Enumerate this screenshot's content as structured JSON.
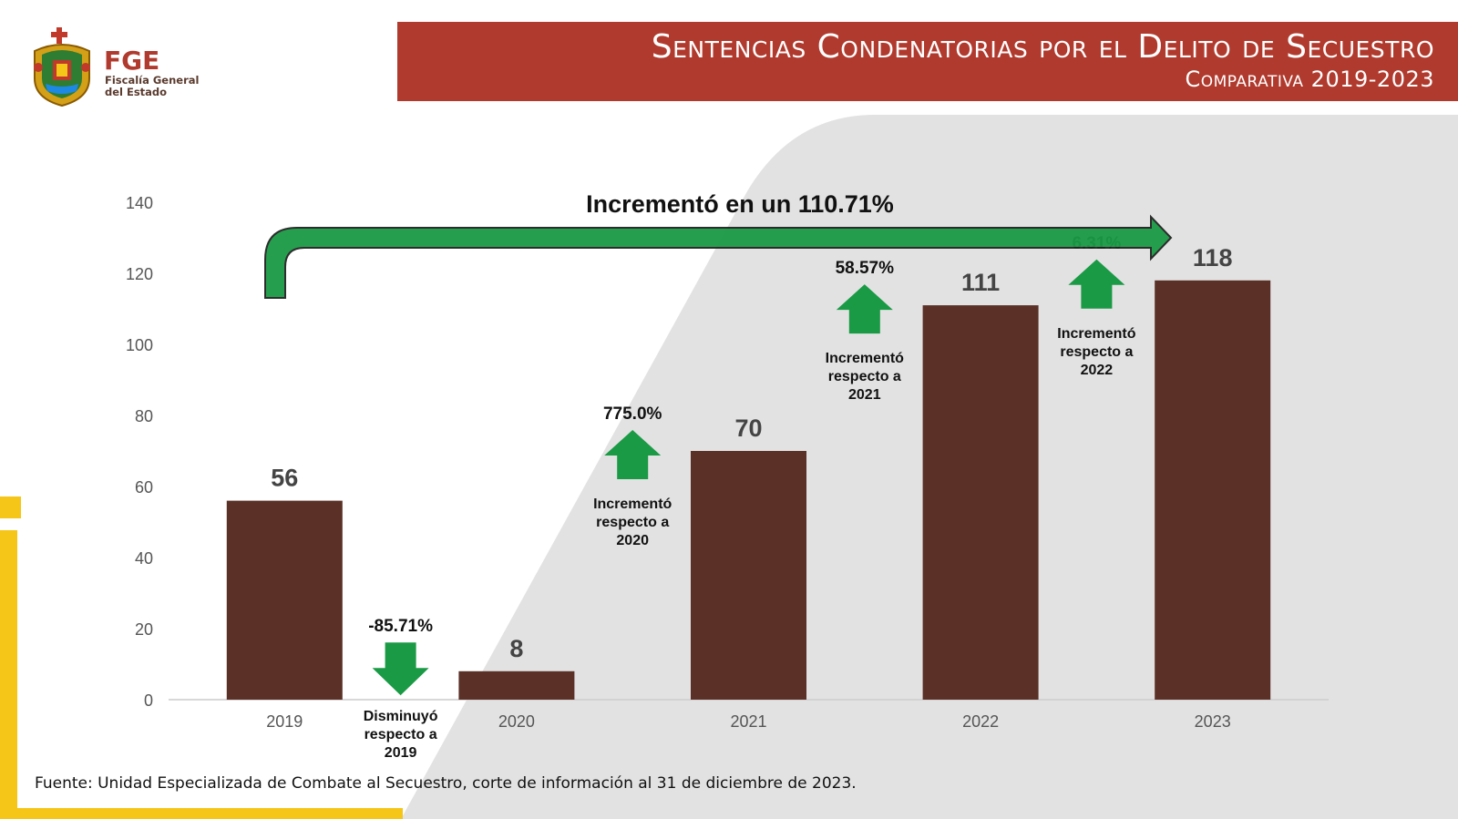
{
  "header": {
    "org_abbr": "FGE",
    "org_name_line1": "Fiscalía General",
    "org_name_line2": "del Estado",
    "title": "Sentencias Condenatorias por el Delito de Secuestro",
    "subtitle": "Comparativa 2019-2023"
  },
  "colors": {
    "banner": "#b03a2e",
    "bar": "#5a3027",
    "arrow": "#1a9a45",
    "accent_yellow": "#f5c518",
    "background_shape": "#e2e2e2"
  },
  "chart_data": {
    "type": "bar",
    "categories": [
      "2019",
      "2020",
      "2021",
      "2022",
      "2023"
    ],
    "values": [
      56,
      8,
      70,
      111,
      118
    ],
    "ylim": [
      0,
      140
    ],
    "yticks": [
      0,
      20,
      40,
      60,
      80,
      100,
      120,
      140
    ],
    "grid": false,
    "title": "",
    "xlabel": "",
    "ylabel": "",
    "overall_change": "Incrementó en un 110.71%",
    "changes": [
      {
        "between": [
          "2019",
          "2020"
        ],
        "direction": "down",
        "percent": "-85.71%",
        "label_lines": [
          "Disminuyó",
          "respecto a",
          "2019"
        ]
      },
      {
        "between": [
          "2020",
          "2021"
        ],
        "direction": "up",
        "percent": "775.0%",
        "label_lines": [
          "Incrementó",
          "respecto a",
          "2020"
        ]
      },
      {
        "between": [
          "2021",
          "2022"
        ],
        "direction": "up",
        "percent": "58.57%",
        "label_lines": [
          "Incrementó",
          "respecto a",
          "2021"
        ]
      },
      {
        "between": [
          "2022",
          "2023"
        ],
        "direction": "up",
        "percent": "6.31%",
        "label_lines": [
          "Incrementó",
          "respecto a",
          "2022"
        ]
      }
    ]
  },
  "footer": {
    "source": "Fuente: Unidad Especializada de Combate al Secuestro, corte de información al 31 de diciembre de 2023."
  }
}
